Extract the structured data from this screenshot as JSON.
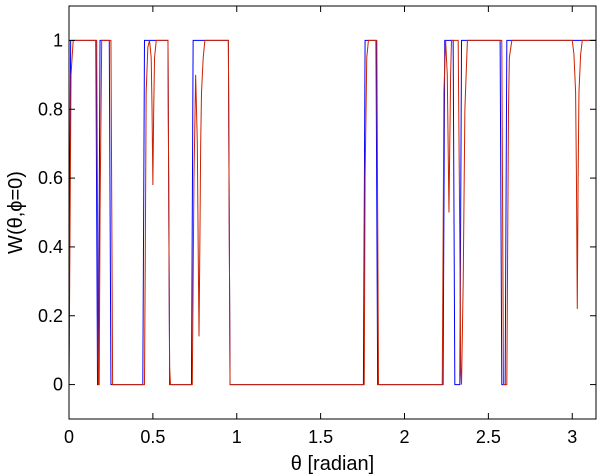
{
  "chart_data": {
    "type": "line",
    "xlabel": "θ [radian]",
    "ylabel": "W(θ,ϕ=0)",
    "xlim": [
      0,
      3.14159
    ],
    "ylim": [
      -0.1,
      1.1
    ],
    "grid": false,
    "x_ticks": [
      0,
      0.5,
      1,
      1.5,
      2,
      2.5,
      3
    ],
    "x_tick_labels": [
      "0",
      "0.5",
      "1",
      "1.5",
      "2",
      "2.5",
      "3"
    ],
    "y_ticks": [
      0,
      0.2,
      0.4,
      0.6,
      0.8,
      1
    ],
    "y_tick_labels": [
      "0",
      "0.2",
      "0.4",
      "0.6",
      "0.8",
      "1"
    ],
    "series": [
      {
        "color": "#0000ff",
        "x": [
          0,
          0.005,
          0.01,
          0.16,
          0.165,
          0.17,
          0.175,
          0.18,
          0.185,
          0.19,
          0.24,
          0.245,
          0.25,
          0.44,
          0.445,
          0.45,
          0.59,
          0.595,
          0.6,
          0.73,
          0.735,
          0.74,
          0.95,
          0.955,
          0.96,
          1.755,
          1.76,
          1.765,
          1.83,
          1.835,
          1.84,
          2.23,
          2.235,
          2.24,
          2.29,
          2.295,
          2.3,
          2.33,
          2.335,
          2.34,
          2.57,
          2.575,
          2.58,
          2.6,
          2.605,
          2.61,
          3.141
        ],
        "y": [
          0,
          0.6,
          1,
          1,
          0.5,
          0,
          0,
          0.5,
          1,
          1,
          1,
          0.5,
          0,
          0,
          0.5,
          1,
          1,
          0.5,
          0,
          0,
          0.5,
          1,
          1,
          0.5,
          0,
          0,
          0.5,
          1,
          1,
          0.5,
          0,
          0,
          0.5,
          1,
          1,
          0.5,
          0,
          0,
          0.5,
          1,
          1,
          0.5,
          0,
          0,
          0.5,
          1,
          1
        ]
      },
      {
        "color": "#cc2200",
        "x": [
          0,
          0.004,
          0.012,
          0.025,
          0.165,
          0.17,
          0.175,
          0.18,
          0.185,
          0.195,
          0.25,
          0.255,
          0.26,
          0.45,
          0.455,
          0.46,
          0.47,
          0.48,
          0.49,
          0.495,
          0.5,
          0.505,
          0.51,
          0.52,
          0.59,
          0.595,
          0.6,
          0.605,
          0.735,
          0.745,
          0.755,
          0.765,
          0.77,
          0.775,
          0.78,
          0.785,
          0.79,
          0.8,
          0.81,
          0.95,
          0.955,
          0.96,
          1.76,
          1.765,
          1.775,
          1.785,
          1.835,
          1.84,
          1.845,
          2.225,
          2.23,
          2.235,
          2.245,
          2.255,
          2.265,
          2.275,
          2.28,
          2.32,
          2.325,
          2.33,
          2.335,
          2.34,
          2.35,
          2.36,
          2.375,
          2.58,
          2.585,
          2.59,
          2.61,
          2.615,
          2.62,
          2.625,
          2.64,
          3.0,
          3.01,
          3.02,
          3.025,
          3.03,
          3.035,
          3.04,
          3.05,
          3.06,
          3.08,
          3.141
        ],
        "y": [
          0,
          0.3,
          0.9,
          1,
          1,
          0.5,
          0,
          0,
          0.5,
          1,
          1,
          0.5,
          0,
          0,
          0.4,
          0.85,
          0.98,
          1,
          0.95,
          0.8,
          0.58,
          0.8,
          0.95,
          1,
          1,
          0.5,
          0.05,
          0,
          0,
          0.6,
          0.9,
          0.7,
          0.4,
          0.14,
          0.4,
          0.7,
          0.85,
          0.95,
          1,
          1,
          0.5,
          0,
          0,
          0.6,
          0.95,
          1,
          1,
          0.5,
          0,
          0,
          0.4,
          0.85,
          1,
          0.9,
          0.5,
          0.9,
          1,
          1,
          0.7,
          0.4,
          0.05,
          0,
          0.3,
          0.8,
          1,
          1,
          0.5,
          0,
          0,
          0.4,
          0.8,
          0.95,
          1,
          1,
          0.96,
          0.85,
          0.6,
          0.22,
          0.6,
          0.85,
          0.96,
          1,
          1,
          1
        ]
      }
    ]
  }
}
